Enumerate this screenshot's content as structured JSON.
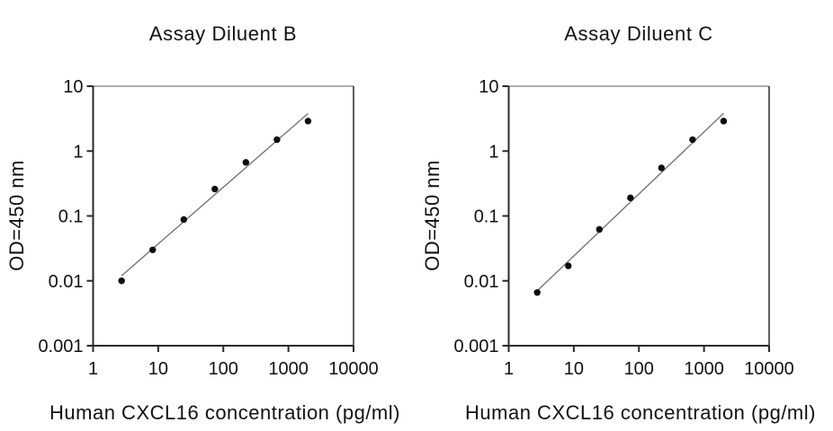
{
  "colors": {
    "background": "#ffffff",
    "text": "#111111",
    "axis": "#2a2a2a",
    "axis_top": "#7a7a7a",
    "point": "#0d0d0d",
    "fit_line": "#6f6f6f"
  },
  "chart_data": [
    {
      "type": "scatter",
      "title": "Assay Diluent B",
      "xlabel": "Human CXCL16 concentration (pg/ml)",
      "ylabel": "OD=450 nm",
      "xscale": "log",
      "yscale": "log",
      "xlim": [
        1,
        10000
      ],
      "ylim": [
        0.001,
        10
      ],
      "x_ticks": [
        1,
        10,
        100,
        1000,
        10000
      ],
      "y_ticks": [
        10,
        1,
        0.1,
        0.01,
        0.001
      ],
      "grid": false,
      "legend": false,
      "marker": "filled-circle",
      "fit": "linear-regression-loglog",
      "x": [
        2.74,
        8.23,
        24.7,
        74.1,
        222,
        667,
        2000
      ],
      "y": [
        0.01,
        0.03,
        0.088,
        0.26,
        0.67,
        1.5,
        2.9
      ]
    },
    {
      "type": "scatter",
      "title": "Assay Diluent C",
      "xlabel": "Human CXCL16 concentration (pg/ml)",
      "ylabel": "OD=450 nm",
      "xscale": "log",
      "yscale": "log",
      "xlim": [
        1,
        10000
      ],
      "ylim": [
        0.001,
        10
      ],
      "x_ticks": [
        1,
        10,
        100,
        1000,
        10000
      ],
      "y_ticks": [
        10,
        1,
        0.1,
        0.01,
        0.001
      ],
      "grid": false,
      "legend": false,
      "marker": "filled-circle",
      "fit": "linear-regression-loglog",
      "x": [
        2.74,
        8.23,
        24.7,
        74.1,
        222,
        667,
        2000
      ],
      "y": [
        0.0066,
        0.017,
        0.062,
        0.19,
        0.55,
        1.5,
        2.9
      ]
    }
  ]
}
